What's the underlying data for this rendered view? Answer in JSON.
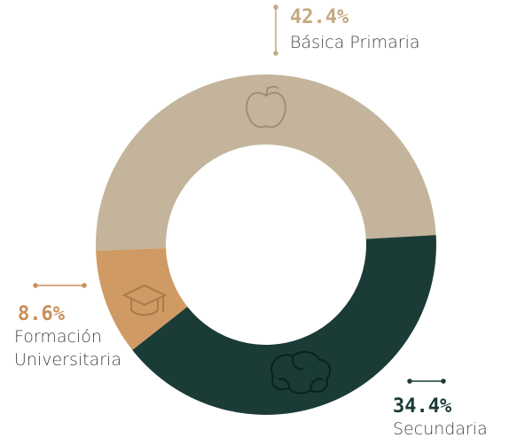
{
  "chart_data": {
    "type": "donut",
    "categories": [
      "Básica Primaria",
      "Secundaria",
      "Formación Universitaria"
    ],
    "values": [
      42.4,
      34.4,
      8.6
    ],
    "value_labels": [
      "42.4%",
      "34.4%",
      "8.6%"
    ],
    "colors": [
      "#c4b49b",
      "#1b3b36",
      "#cf9a64"
    ],
    "label_colors": [
      "#c4a882",
      "#1b3b36",
      "#c98f58"
    ]
  }
}
